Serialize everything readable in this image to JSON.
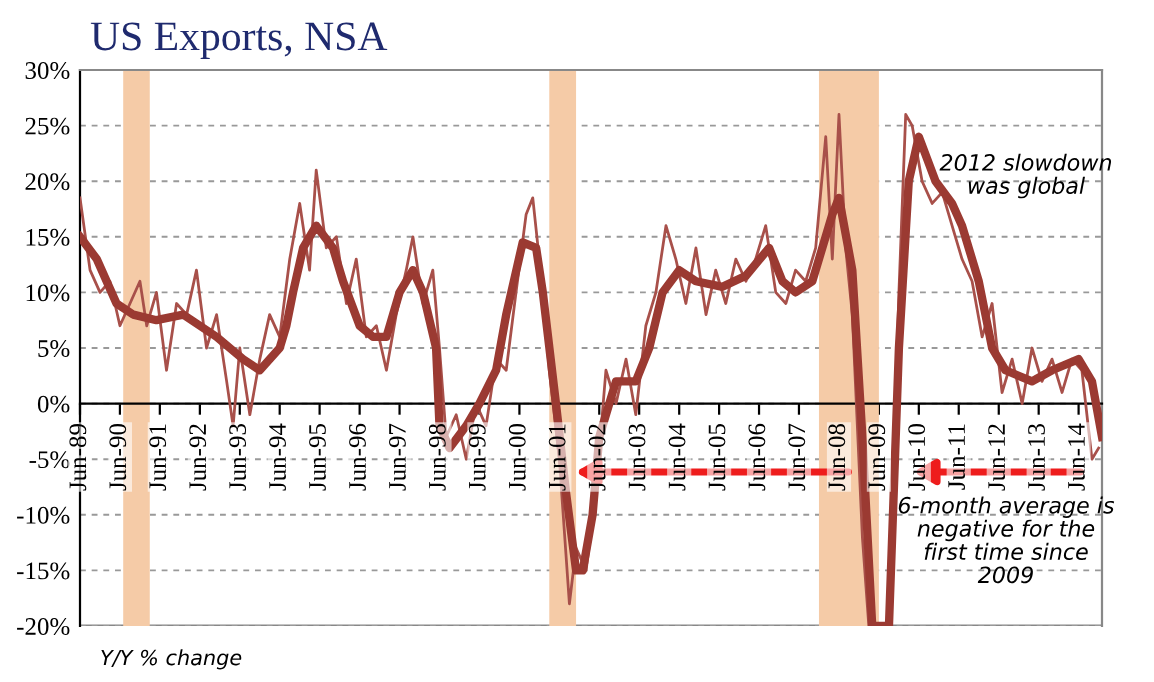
{
  "chart_data": {
    "type": "line",
    "title": "US Exports, NSA",
    "annotations": [
      "2012 slowdown\nwas global",
      "6-month average is\nnegative for the\nfirst time since\n2009",
      "Y/Y % change"
    ],
    "xlim": [
      "1989-06",
      "2015-01"
    ],
    "xticks": [
      {
        "value": "1989-06",
        "label": "Jun-89"
      },
      {
        "value": "1990-06",
        "label": "Jun-90"
      },
      {
        "value": "1991-06",
        "label": "Jun-91"
      },
      {
        "value": "1992-06",
        "label": "Jun-92"
      },
      {
        "value": "1993-06",
        "label": "Jun-93"
      },
      {
        "value": "1994-06",
        "label": "Jun-94"
      },
      {
        "value": "1995-06",
        "label": "Jun-95"
      },
      {
        "value": "1996-06",
        "label": "Jun-96"
      },
      {
        "value": "1997-06",
        "label": "Jun-97"
      },
      {
        "value": "1998-06",
        "label": "Jun-98"
      },
      {
        "value": "1999-06",
        "label": "Jun-99"
      },
      {
        "value": "2000-06",
        "label": "Jun-00"
      },
      {
        "value": "2001-06",
        "label": "Jun-01"
      },
      {
        "value": "2002-06",
        "label": "Jun-02"
      },
      {
        "value": "2003-06",
        "label": "Jun-03"
      },
      {
        "value": "2004-06",
        "label": "Jun-04"
      },
      {
        "value": "2005-06",
        "label": "Jun-05"
      },
      {
        "value": "2006-06",
        "label": "Jun-06"
      },
      {
        "value": "2007-06",
        "label": "Jun-07"
      },
      {
        "value": "2008-06",
        "label": "Jun-08"
      },
      {
        "value": "2009-06",
        "label": "Jun-09"
      },
      {
        "value": "2010-06",
        "label": "Jun-10"
      },
      {
        "value": "2011-06",
        "label": "Jun-11"
      },
      {
        "value": "2012-06",
        "label": "Jun-12"
      },
      {
        "value": "2013-06",
        "label": "Jun-13"
      },
      {
        "value": "2014-06",
        "label": "Jun-14"
      }
    ],
    "ylim": [
      -20,
      30
    ],
    "yticks": [
      {
        "value": -20,
        "label": "-20%"
      },
      {
        "value": -15,
        "label": "-15%"
      },
      {
        "value": -10,
        "label": "-10%"
      },
      {
        "value": -5,
        "label": "-5%"
      },
      {
        "value": 0,
        "label": "0%"
      },
      {
        "value": 5,
        "label": "5%"
      },
      {
        "value": 10,
        "label": "10%"
      },
      {
        "value": 15,
        "label": "15%"
      },
      {
        "value": 20,
        "label": "20%"
      },
      {
        "value": 25,
        "label": "25%"
      },
      {
        "value": 30,
        "label": "30%"
      }
    ],
    "grid": "y",
    "legend": false,
    "line_style": "solid",
    "marker": "none",
    "bands": [
      {
        "axis": "x",
        "from": "1990-07",
        "to": "1991-03",
        "color": "#f5cba7"
      },
      {
        "axis": "x",
        "from": "2001-03",
        "to": "2001-11",
        "color": "#f5cba7"
      },
      {
        "axis": "x",
        "from": "2007-12",
        "to": "2009-06",
        "color": "#f5cba7"
      }
    ],
    "series": [
      {
        "color": "#a8504a",
        "x": [
          "1989-06",
          "1989-09",
          "1989-12",
          "1990-03",
          "1990-06",
          "1990-09",
          "1990-12",
          "1991-02",
          "1991-05",
          "1991-08",
          "1991-11",
          "1992-02",
          "1992-05",
          "1992-08",
          "1992-11",
          "1993-02",
          "1993-04",
          "1993-06",
          "1993-09",
          "1993-12",
          "1994-03",
          "1994-06",
          "1994-09",
          "1994-12",
          "1995-03",
          "1995-05",
          "1995-08",
          "1995-11",
          "1996-02",
          "1996-05",
          "1996-08",
          "1996-11",
          "1997-02",
          "1997-05",
          "1997-08",
          "1997-10",
          "1998-01",
          "1998-04",
          "1998-06",
          "1998-08",
          "1998-11",
          "1999-02",
          "1999-05",
          "1999-08",
          "1999-11",
          "2000-02",
          "2000-05",
          "2000-08",
          "2000-10",
          "2001-01",
          "2001-03",
          "2001-06",
          "2001-09",
          "2001-11",
          "2002-02",
          "2002-05",
          "2002-08",
          "2002-11",
          "2003-02",
          "2003-05",
          "2003-08",
          "2003-11",
          "2004-02",
          "2004-05",
          "2004-08",
          "2004-11",
          "2005-02",
          "2005-05",
          "2005-08",
          "2005-11",
          "2006-02",
          "2006-05",
          "2006-08",
          "2006-11",
          "2007-02",
          "2007-05",
          "2007-08",
          "2007-11",
          "2008-02",
          "2008-04",
          "2008-06",
          "2008-08",
          "2008-10",
          "2009-01",
          "2009-03",
          "2009-09",
          "2009-12",
          "2010-02",
          "2010-04",
          "2010-07",
          "2010-10",
          "2011-01",
          "2011-04",
          "2011-07",
          "2011-10",
          "2012-01",
          "2012-04",
          "2012-07",
          "2012-10",
          "2013-01",
          "2013-04",
          "2013-07",
          "2013-10",
          "2014-01",
          "2014-04",
          "2014-07",
          "2014-10",
          "2014-12"
        ],
        "values": [
          18.5,
          12,
          10,
          11,
          7,
          9,
          11,
          7,
          10,
          3,
          9,
          8,
          12,
          5,
          8,
          2,
          -2,
          5,
          -1,
          4,
          8,
          6,
          13,
          18,
          12,
          21,
          14,
          15,
          9,
          13,
          6,
          7,
          3,
          8,
          12,
          15,
          9,
          12,
          5,
          -3,
          -1,
          -5,
          0,
          -2,
          4,
          3,
          10,
          17,
          18.5,
          10,
          3,
          -5,
          -18,
          -13,
          -15,
          -8,
          3,
          0,
          4,
          -1,
          7,
          10,
          16,
          13,
          9,
          14,
          8,
          12,
          9,
          13,
          11,
          13,
          16,
          10,
          9,
          12,
          11,
          14,
          24,
          13,
          26,
          14,
          8,
          -12,
          -20,
          -20,
          10,
          26,
          25,
          20,
          18,
          19,
          16,
          13,
          11,
          6,
          9,
          1,
          4,
          0,
          5,
          2,
          4,
          1,
          4,
          3,
          -5,
          -4
        ]
      },
      {
        "color": "#9b3a32",
        "x": [
          "1989-06",
          "1989-11",
          "1990-05",
          "1990-10",
          "1991-05",
          "1992-01",
          "1992-11",
          "1993-07",
          "1993-12",
          "1994-06",
          "1994-08",
          "1994-10",
          "1995-01",
          "1995-05",
          "1995-10",
          "1996-01",
          "1996-06",
          "1996-10",
          "1997-02",
          "1997-06",
          "1997-10",
          "1998-01",
          "1998-05",
          "1998-06",
          "1998-09",
          "1999-02",
          "1999-06",
          "1999-11",
          "2000-02",
          "2000-07",
          "2000-11",
          "2001-01",
          "2001-05",
          "2001-08",
          "2001-11",
          "2002-01",
          "2002-04",
          "2002-06",
          "2002-11",
          "2003-05",
          "2003-09",
          "2004-01",
          "2004-06",
          "2004-11",
          "2005-07",
          "2006-02",
          "2006-09",
          "2007-01",
          "2007-05",
          "2007-10",
          "2008-04",
          "2008-06",
          "2008-10",
          "2009-01",
          "2009-04",
          "2009-09",
          "2009-12",
          "2010-03",
          "2010-06",
          "2010-11",
          "2011-04",
          "2011-07",
          "2011-12",
          "2012-04",
          "2012-08",
          "2013-04",
          "2013-10",
          "2014-06",
          "2014-10",
          "2015-01"
        ],
        "values": [
          15,
          13,
          9,
          8,
          7.5,
          8,
          6,
          4,
          3,
          5,
          7,
          10,
          14,
          16,
          14,
          11,
          7,
          6,
          6,
          10,
          12,
          10,
          5,
          -2,
          -4,
          -2,
          0,
          3,
          8,
          14.5,
          14,
          10,
          0,
          -8,
          -15,
          -15,
          -10,
          -3,
          2,
          2,
          5,
          10,
          12,
          11,
          10.5,
          11.5,
          14,
          11,
          10,
          11,
          17,
          18.5,
          12,
          -3,
          -20,
          -20,
          5,
          20,
          24,
          20,
          18,
          16,
          11,
          5,
          3,
          2,
          3,
          4,
          2,
          -3
        ]
      }
    ]
  }
}
